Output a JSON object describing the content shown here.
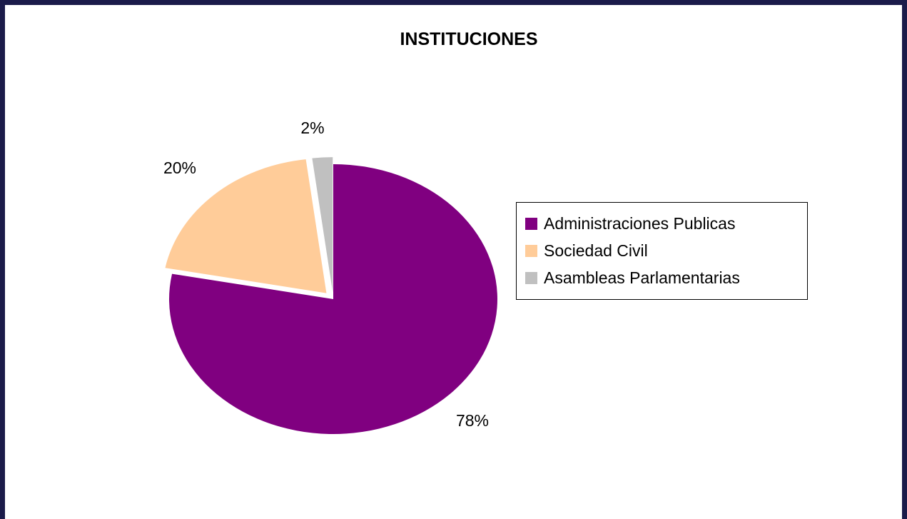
{
  "chart_data": {
    "type": "pie",
    "title": "INSTITUCIONES",
    "categories": [
      "Administraciones Publicas",
      "Sociedad Civil",
      "Asambleas Parlamentarias"
    ],
    "values": [
      78,
      20,
      2
    ],
    "labels": [
      "78%",
      "20%",
      "2%"
    ],
    "colors": [
      "#800080",
      "#ffcc99",
      "#c0c0c0"
    ],
    "legend_placement": "right"
  }
}
